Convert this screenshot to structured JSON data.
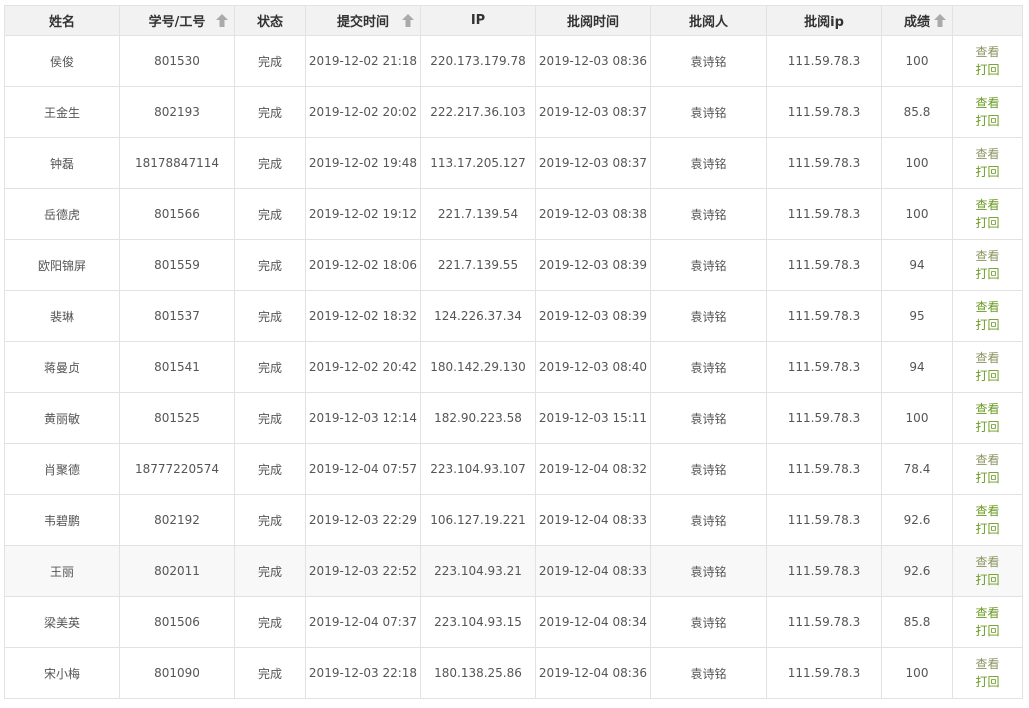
{
  "headers": [
    "姓名",
    "学号/工号",
    "状态",
    "提交时间",
    "IP",
    "批阅时间",
    "批阅人",
    "批阅ip",
    "成绩",
    ""
  ],
  "sortable": [
    false,
    true,
    false,
    true,
    false,
    false,
    false,
    false,
    true,
    false
  ],
  "actions": {
    "view": "查看",
    "reject": "打回"
  },
  "link_color": "#6b9a22",
  "rows": [
    [
      "侯俊",
      "801530",
      "完成",
      "2019-12-02 21:18",
      "220.173.179.78",
      "2019-12-03 08:36",
      "袁诗铭",
      "111.59.78.3",
      "100"
    ],
    [
      "王金生",
      "802193",
      "完成",
      "2019-12-02 20:02",
      "222.217.36.103",
      "2019-12-03 08:37",
      "袁诗铭",
      "111.59.78.3",
      "85.8"
    ],
    [
      "钟磊",
      "18178847114",
      "完成",
      "2019-12-02 19:48",
      "113.17.205.127",
      "2019-12-03 08:37",
      "袁诗铭",
      "111.59.78.3",
      "100"
    ],
    [
      "岳德虎",
      "801566",
      "完成",
      "2019-12-02 19:12",
      "221.7.139.54",
      "2019-12-03 08:38",
      "袁诗铭",
      "111.59.78.3",
      "100"
    ],
    [
      "欧阳锦屏",
      "801559",
      "完成",
      "2019-12-02 18:06",
      "221.7.139.55",
      "2019-12-03 08:39",
      "袁诗铭",
      "111.59.78.3",
      "94"
    ],
    [
      "裴琳",
      "801537",
      "完成",
      "2019-12-02 18:32",
      "124.226.37.34",
      "2019-12-03 08:39",
      "袁诗铭",
      "111.59.78.3",
      "95"
    ],
    [
      "蒋曼贞",
      "801541",
      "完成",
      "2019-12-02 20:42",
      "180.142.29.130",
      "2019-12-03 08:40",
      "袁诗铭",
      "111.59.78.3",
      "94"
    ],
    [
      "黄丽敏",
      "801525",
      "完成",
      "2019-12-03 12:14",
      "182.90.223.58",
      "2019-12-03 15:11",
      "袁诗铭",
      "111.59.78.3",
      "100"
    ],
    [
      "肖聚德",
      "18777220574",
      "完成",
      "2019-12-04 07:57",
      "223.104.93.107",
      "2019-12-04 08:32",
      "袁诗铭",
      "111.59.78.3",
      "78.4"
    ],
    [
      "韦碧鹏",
      "802192",
      "完成",
      "2019-12-03 22:29",
      "106.127.19.221",
      "2019-12-04 08:33",
      "袁诗铭",
      "111.59.78.3",
      "92.6"
    ],
    [
      "王丽",
      "802011",
      "完成",
      "2019-12-03 22:52",
      "223.104.93.21",
      "2019-12-04 08:33",
      "袁诗铭",
      "111.59.78.3",
      "92.6"
    ],
    [
      "梁美英",
      "801506",
      "完成",
      "2019-12-04 07:37",
      "223.104.93.15",
      "2019-12-04 08:34",
      "袁诗铭",
      "111.59.78.3",
      "85.8"
    ],
    [
      "宋小梅",
      "801090",
      "完成",
      "2019-12-03 22:18",
      "180.138.25.86",
      "2019-12-04 08:36",
      "袁诗铭",
      "111.59.78.3",
      "100"
    ]
  ]
}
